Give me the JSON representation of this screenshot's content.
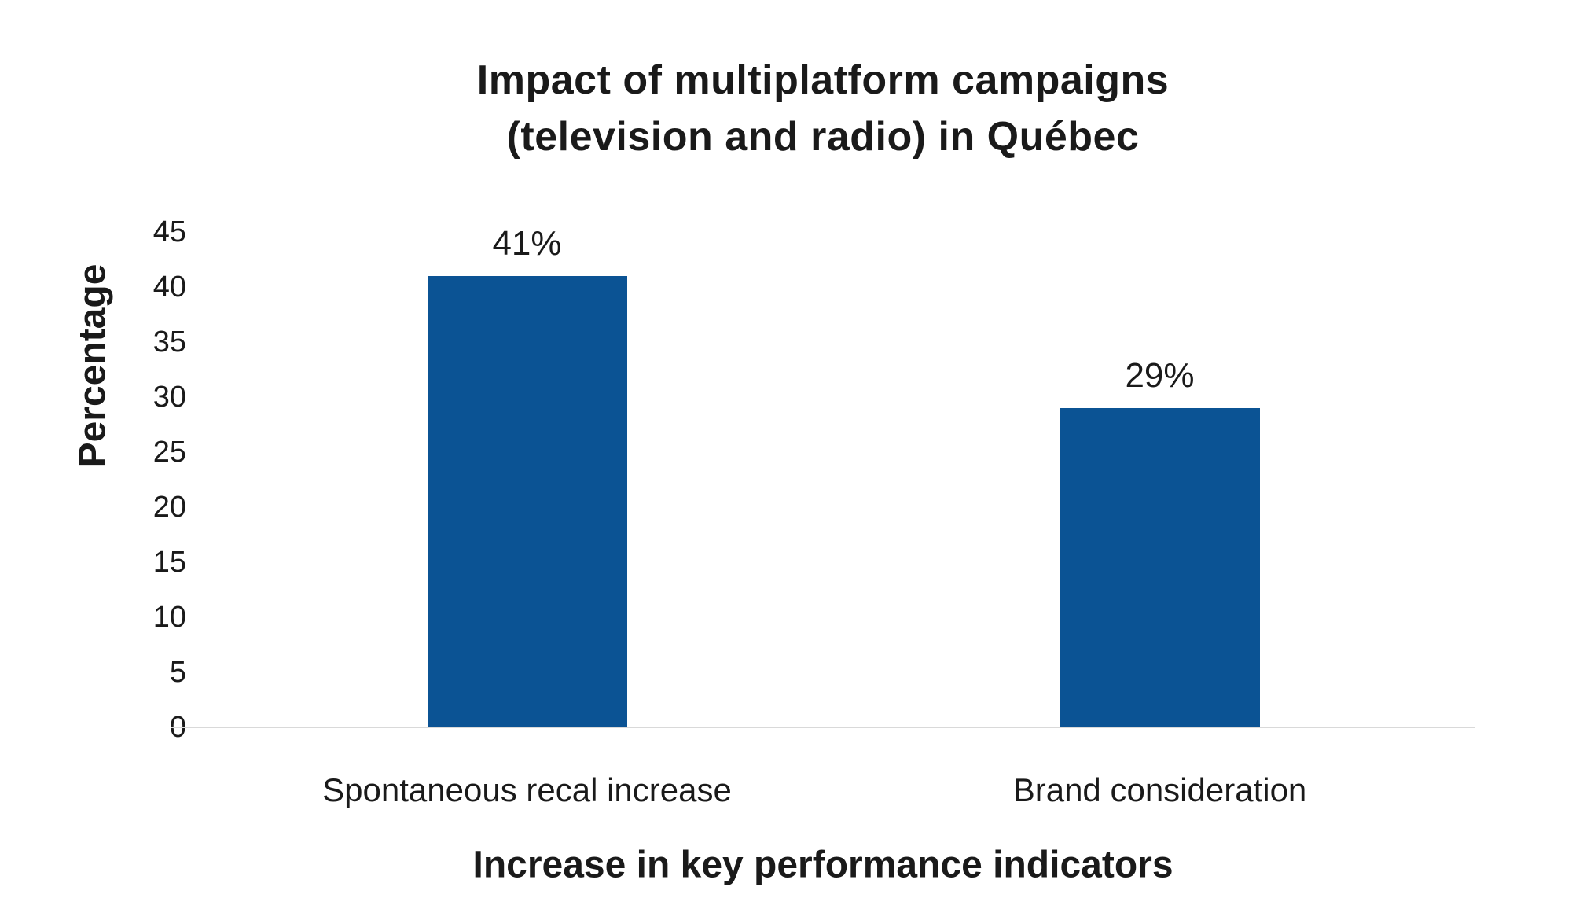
{
  "chart_data": {
    "type": "bar",
    "title": "Impact of multiplatform campaigns (television and radio) in Québec",
    "title_lines": [
      "Impact of multiplatform campaigns",
      "(television and radio) in Québec"
    ],
    "categories": [
      "Spontaneous recal increase",
      "Brand consideration"
    ],
    "values": [
      41,
      29
    ],
    "data_labels": [
      "41%",
      "29%"
    ],
    "xlabel": "Increase in key performance indicators",
    "ylabel": "Percentage",
    "ylim": [
      0,
      45
    ],
    "ytick_step": 5,
    "yticks": [
      0,
      5,
      10,
      15,
      20,
      25,
      30,
      35,
      40,
      45
    ],
    "grid": false,
    "legend": "none",
    "bar_color": "#0b5394",
    "axis_line_color": "#d9d9d9",
    "text_color": "#1a1a1a",
    "background": "#ffffff"
  }
}
